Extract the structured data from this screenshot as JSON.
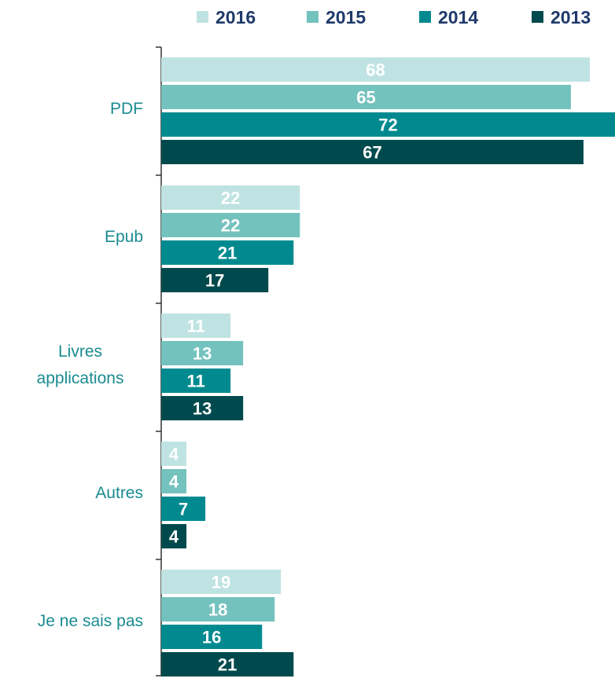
{
  "chart_data": {
    "type": "bar",
    "orientation": "horizontal",
    "categories": [
      "PDF",
      "Epub",
      "Livres applications",
      "Autres",
      "Je ne sais pas"
    ],
    "series": [
      {
        "name": "2016",
        "color": "#bfe3e2",
        "values": [
          68,
          22,
          11,
          4,
          19
        ]
      },
      {
        "name": "2015",
        "color": "#74c2bd",
        "values": [
          65,
          22,
          13,
          4,
          18
        ]
      },
      {
        "name": "2014",
        "color": "#008a8f",
        "values": [
          72,
          21,
          11,
          7,
          16
        ]
      },
      {
        "name": "2013",
        "color": "#004a4d",
        "values": [
          67,
          17,
          13,
          4,
          21
        ]
      }
    ],
    "legend": "top"
  }
}
